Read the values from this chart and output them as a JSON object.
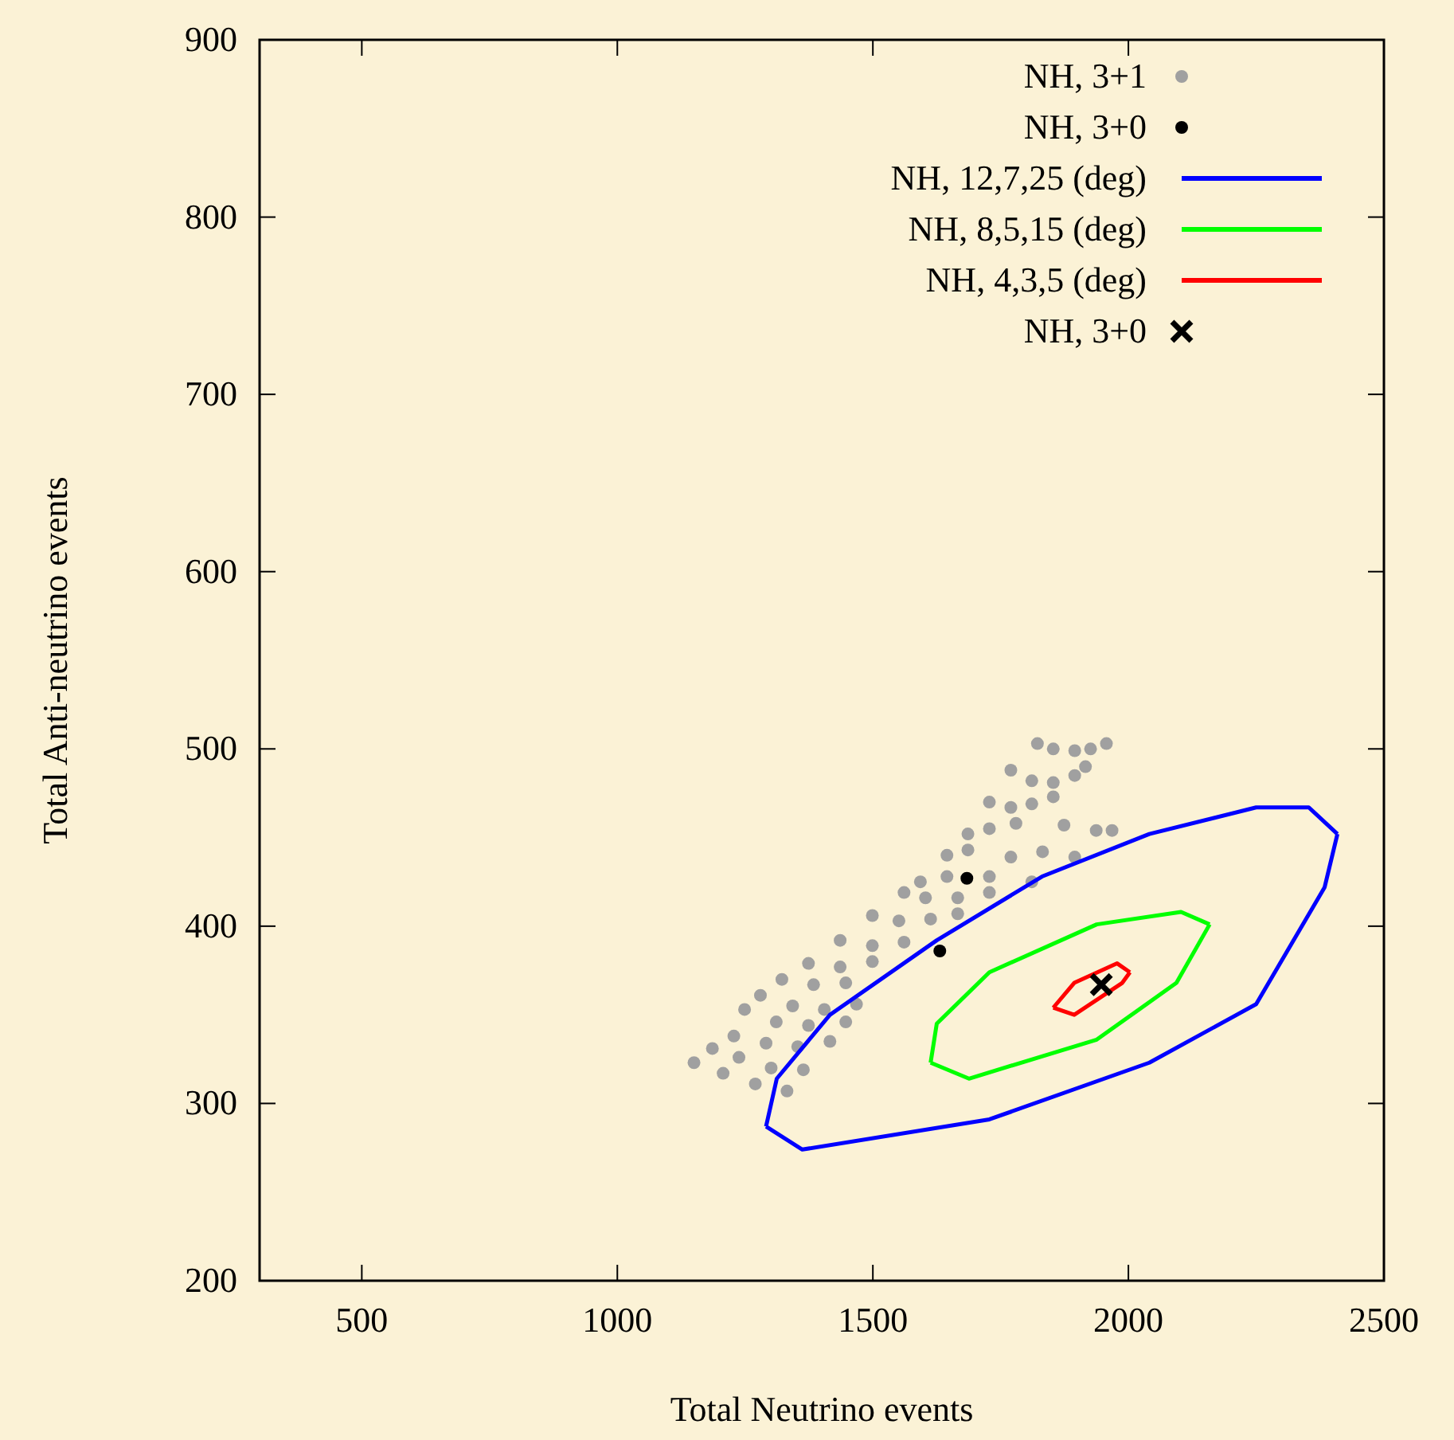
{
  "chart_data": {
    "type": "scatter",
    "xlabel": "Total Neutrino events",
    "ylabel": "Total Anti-neutrino events",
    "xlim": [
      300,
      2500
    ],
    "ylim": [
      200,
      900
    ],
    "xticks": [
      500,
      1000,
      1500,
      2000,
      2500
    ],
    "yticks": [
      200,
      300,
      400,
      500,
      600,
      700,
      800,
      900
    ],
    "grid": false,
    "legend": "top right",
    "series": [
      {
        "name": "NH, 3+1",
        "marker": "circle",
        "color": "#a0a0a0",
        "x": [
          1822,
          1853,
          1895,
          1926,
          1957,
          1770,
          1811,
          1853,
          1895,
          1916,
          1728,
          1770,
          1811,
          1853,
          1686,
          1728,
          1780,
          1874,
          1937,
          1968,
          1645,
          1686,
          1770,
          1832,
          1895,
          1593,
          1645,
          1728,
          1811,
          1561,
          1603,
          1666,
          1728,
          1499,
          1551,
          1613,
          1666,
          1436,
          1499,
          1561,
          1374,
          1436,
          1499,
          1322,
          1384,
          1447,
          1280,
          1343,
          1405,
          1468,
          1249,
          1311,
          1374,
          1447,
          1228,
          1291,
          1353,
          1416,
          1186,
          1238,
          1301,
          1364,
          1150,
          1207,
          1270,
          1332
        ],
        "values": [
          503,
          500,
          499,
          500,
          503,
          488,
          482,
          481,
          485,
          490,
          470,
          467,
          469,
          473,
          452,
          455,
          458,
          457,
          454,
          454,
          440,
          443,
          439,
          442,
          439,
          425,
          428,
          428,
          425,
          419,
          416,
          416,
          419,
          406,
          403,
          404,
          407,
          392,
          389,
          391,
          379,
          377,
          380,
          370,
          367,
          368,
          361,
          355,
          353,
          356,
          353,
          346,
          344,
          346,
          338,
          334,
          332,
          335,
          331,
          326,
          320,
          319,
          323,
          317,
          311,
          307
        ]
      },
      {
        "name": "NH, 3+0",
        "marker": "circle",
        "color": "#000000",
        "x": [
          1684,
          1631
        ],
        "values": [
          427,
          386
        ]
      },
      {
        "name": "NH, 12,7,25 (deg)",
        "type": "line",
        "marker": "none",
        "color": "#0000ff",
        "x": [
          1291,
          1362,
          1728,
          2041,
          2250,
          2384,
          2409
        ],
        "values": [
          287,
          274,
          291,
          323,
          356,
          422,
          452
        ]
      },
      {
        "type": "line",
        "marker": "none",
        "color": "#0000ff",
        "x": [
          1291,
          1312,
          1416,
          1625,
          1831,
          2041,
          2250,
          2353,
          2409
        ],
        "values": [
          287,
          314,
          350,
          392,
          428,
          452,
          467,
          467,
          452
        ]
      },
      {
        "name": "NH, 8,5,15 (deg)",
        "type": "line",
        "marker": "none",
        "color": "#00ff00",
        "x": [
          1613,
          1688,
          1938,
          2094,
          2159
        ],
        "values": [
          323,
          314,
          336,
          368,
          401
        ]
      },
      {
        "type": "line",
        "marker": "none",
        "color": "#00ff00",
        "x": [
          1613,
          1625,
          1728,
          1938,
          2103,
          2159
        ],
        "values": [
          323,
          345,
          374,
          401,
          408,
          401
        ]
      },
      {
        "name": "NH, 4,3,5 (deg)",
        "type": "line",
        "marker": "none",
        "color": "#ff0000",
        "x": [
          1853,
          1894,
          1988,
          2003
        ],
        "values": [
          354,
          350,
          368,
          374
        ]
      },
      {
        "type": "line",
        "marker": "none",
        "color": "#ff0000",
        "x": [
          1853,
          1894,
          1978,
          2003
        ],
        "values": [
          354,
          368,
          379,
          374
        ]
      },
      {
        "name": "NH, 3+0",
        "marker": "cross",
        "color": "#000000",
        "x": [
          1947
        ],
        "values": [
          367
        ]
      }
    ]
  }
}
